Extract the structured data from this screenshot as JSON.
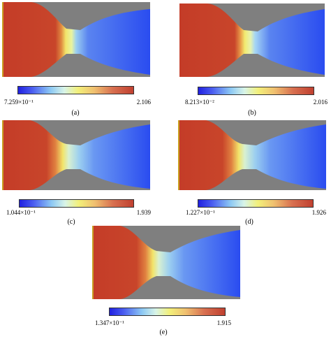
{
  "panels": [
    {
      "caption": "(a)",
      "min_label": "7.259×10⁻¹",
      "max_label": "2.106"
    },
    {
      "caption": "(b)",
      "min_label": "8.213×10⁻²",
      "max_label": "2.016"
    },
    {
      "caption": "(c)",
      "min_label": "1.044×10⁻¹",
      "max_label": "1.939"
    },
    {
      "caption": "(d)",
      "min_label": "1.227×10⁻¹",
      "max_label": "1.926"
    },
    {
      "caption": "(e)",
      "min_label": "1.347×10⁻¹",
      "max_label": "1.915"
    }
  ],
  "colors": {
    "background_gray": "#7f7f7f",
    "inlet_red": "#c43c28",
    "outlet_blue": "#2a4cf0",
    "throat_yellow": "#f0e86a"
  }
}
